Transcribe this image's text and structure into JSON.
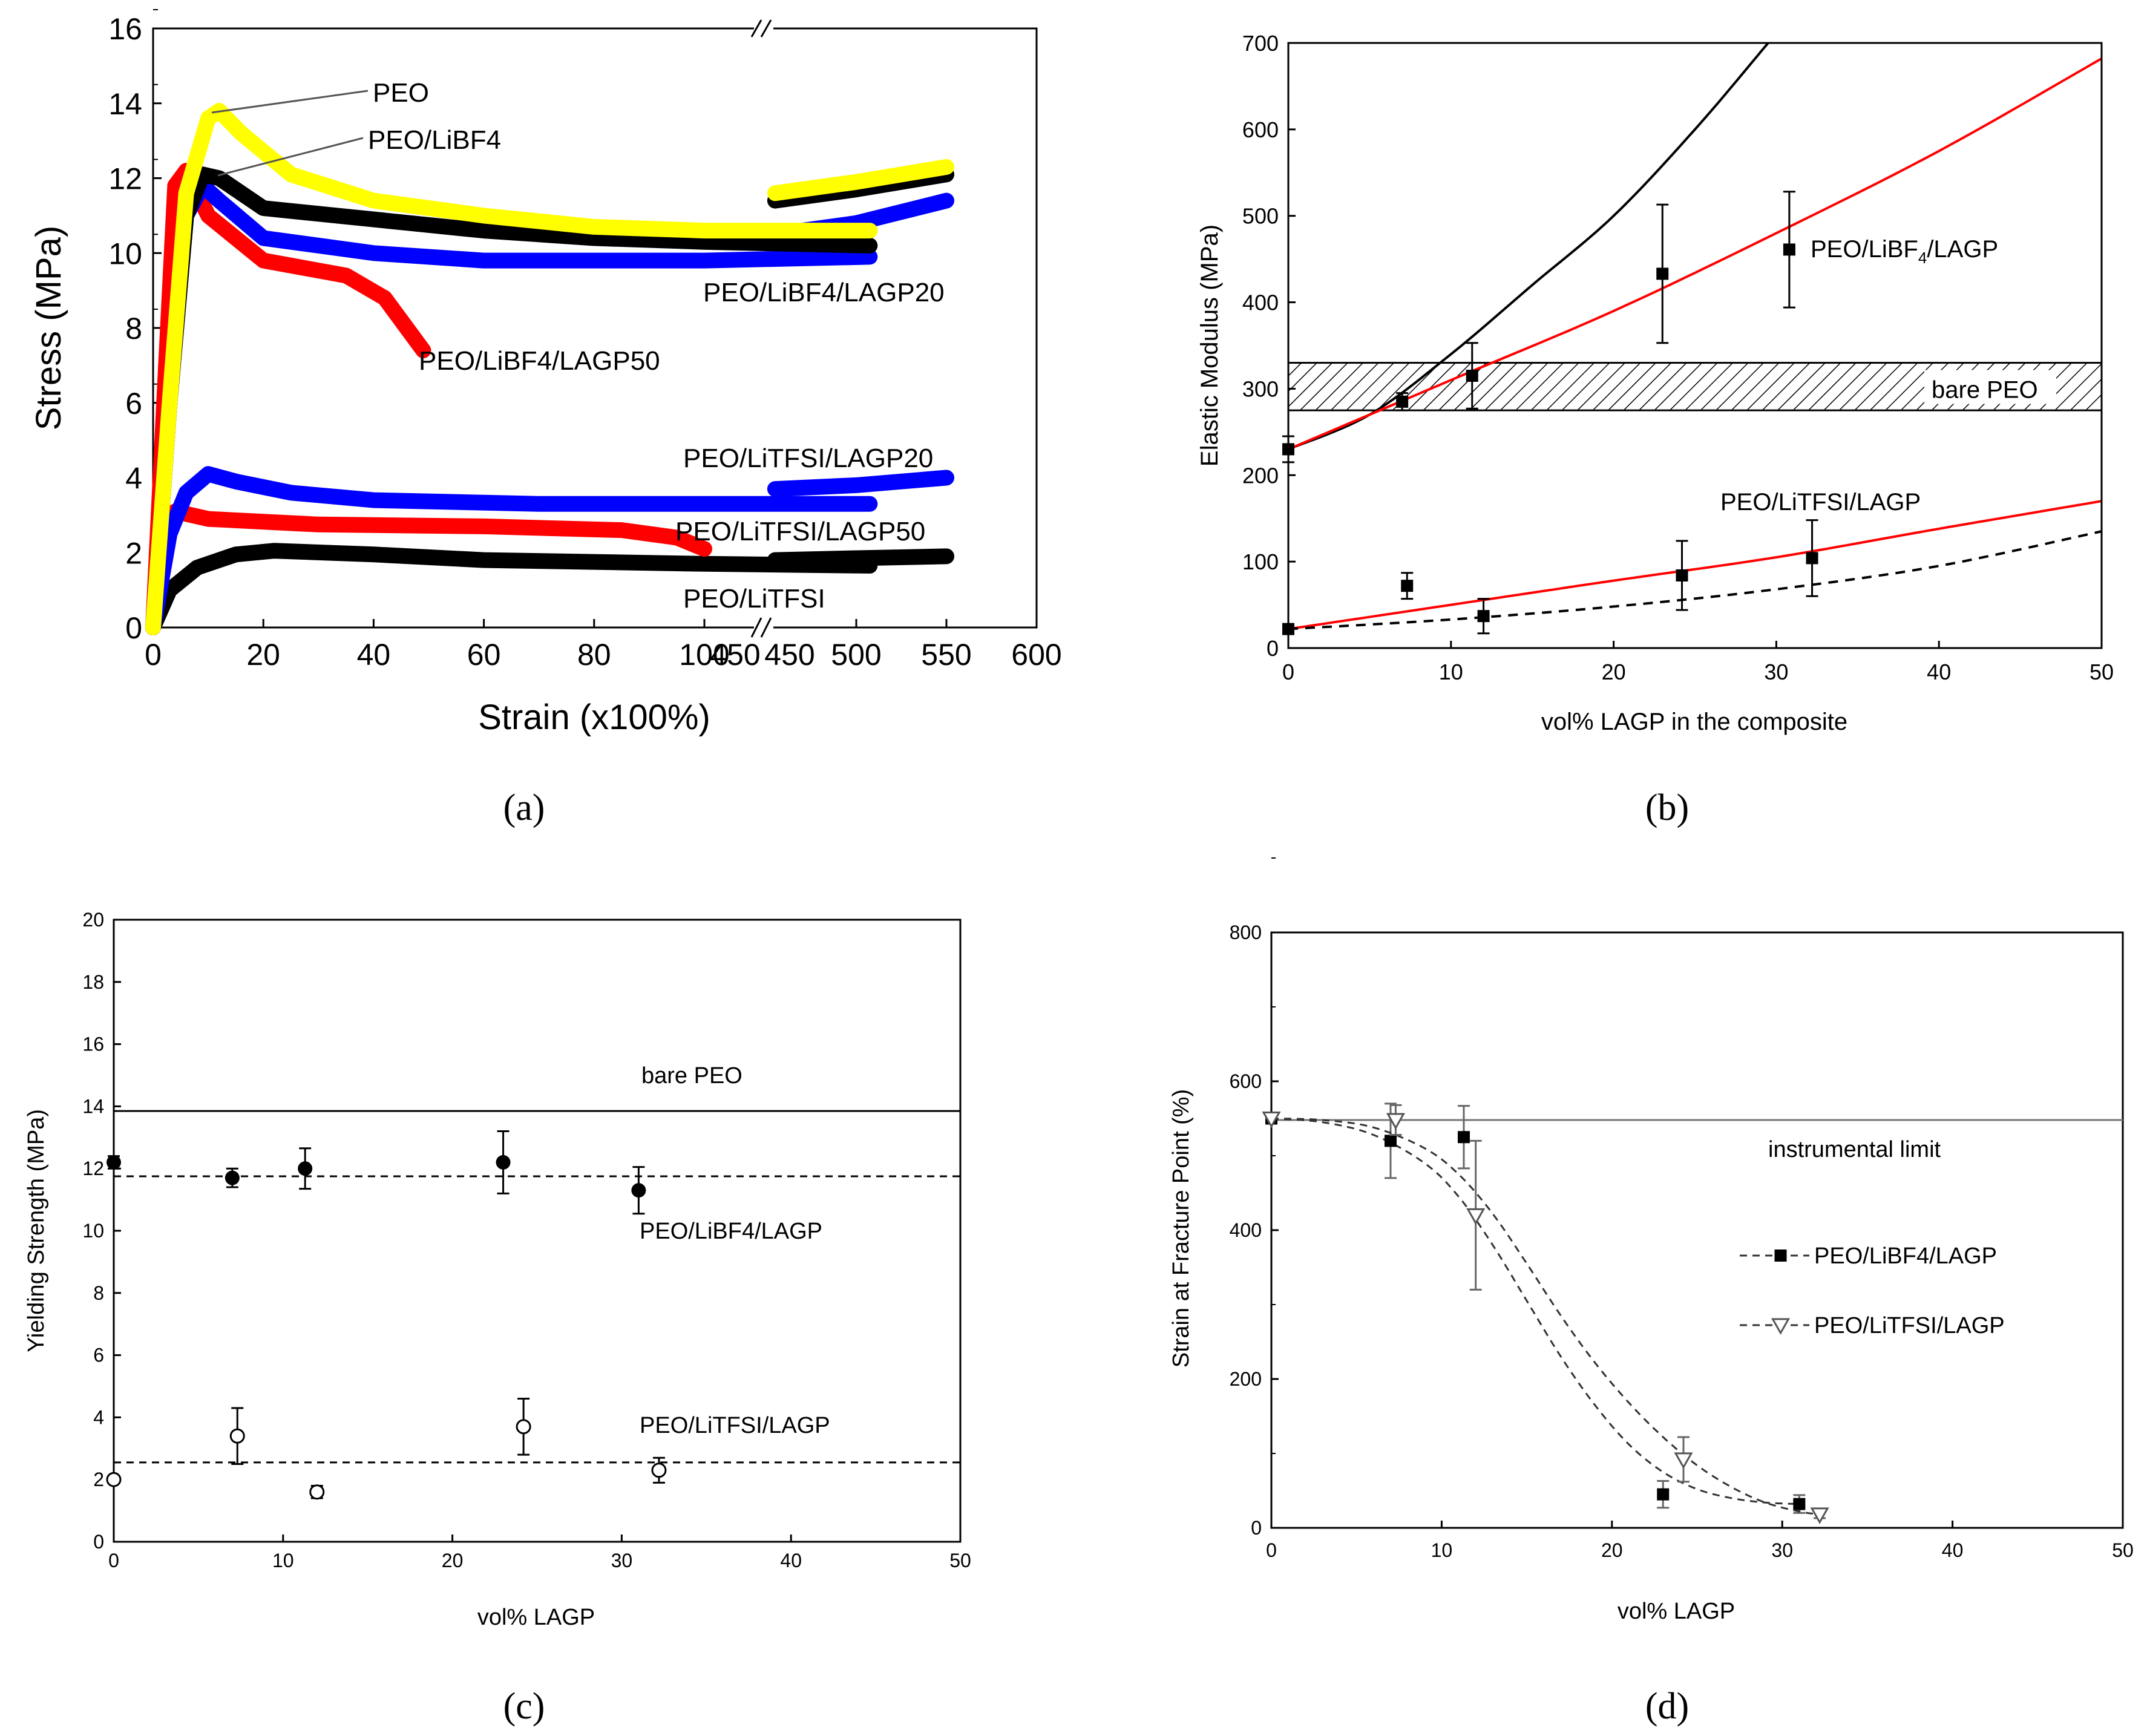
{
  "chart_data": [
    {
      "panel": "a",
      "type": "line",
      "title": "",
      "caption": "(a)",
      "xlabel": "Strain (x100%)",
      "ylabel": "Stress (MPa)",
      "ylim": [
        0,
        16
      ],
      "xlim_left": [
        0,
        140
      ],
      "xlim_right": [
        450,
        600
      ],
      "axis_break": "//",
      "xticks_left": [
        0,
        20,
        40,
        60,
        80,
        100
      ],
      "xtick_break_label": "450",
      "xticks_right": [
        500,
        550,
        600
      ],
      "yticks": [
        0,
        2,
        4,
        6,
        8,
        10,
        12,
        14,
        16
      ],
      "grid": false,
      "series": [
        {
          "name": "PEO",
          "color": "#ffff00",
          "points": [
            [
              0,
              0
            ],
            [
              3,
              6
            ],
            [
              6,
              11.6
            ],
            [
              10,
              13.6
            ],
            [
              12,
              13.8
            ],
            [
              16,
              13.2
            ],
            [
              25,
              12.1
            ],
            [
              40,
              11.4
            ],
            [
              60,
              11.0
            ],
            [
              80,
              10.7
            ],
            [
              100,
              10.6
            ],
            [
              130,
              10.6
            ]
          ],
          "points_right": [
            [
              455,
              11.6
            ],
            [
              500,
              11.9
            ],
            [
              550,
              12.3
            ]
          ]
        },
        {
          "name": "PEO/LiBF4",
          "color": "#000000",
          "points": [
            [
              0,
              0
            ],
            [
              3,
              6
            ],
            [
              6,
              11
            ],
            [
              9,
              12.1
            ],
            [
              12,
              12.0
            ],
            [
              20,
              11.2
            ],
            [
              40,
              10.9
            ],
            [
              60,
              10.6
            ],
            [
              80,
              10.4
            ],
            [
              100,
              10.3
            ],
            [
              130,
              10.2
            ]
          ],
          "points_right": [
            [
              455,
              11.4
            ],
            [
              500,
              11.7
            ],
            [
              550,
              12.1
            ]
          ]
        },
        {
          "name": "PEO/LiBF4/LAGP20",
          "color": "#0000ff",
          "points": [
            [
              0,
              0
            ],
            [
              3,
              6
            ],
            [
              6,
              11
            ],
            [
              9,
              11.8
            ],
            [
              12,
              11.4
            ],
            [
              20,
              10.4
            ],
            [
              40,
              10.0
            ],
            [
              60,
              9.8
            ],
            [
              80,
              9.8
            ],
            [
              100,
              9.8
            ],
            [
              130,
              9.9
            ]
          ],
          "points_right": [
            [
              455,
              10.5
            ],
            [
              500,
              10.8
            ],
            [
              550,
              11.4
            ]
          ]
        },
        {
          "name": "PEO/LiBF4/LAGP50",
          "color": "#ff0000",
          "points": [
            [
              0,
              0
            ],
            [
              2,
              6
            ],
            [
              4,
              11.8
            ],
            [
              6,
              12.2
            ],
            [
              10,
              11.0
            ],
            [
              20,
              9.8
            ],
            [
              35,
              9.4
            ],
            [
              42,
              8.8
            ],
            [
              46,
              8.0
            ],
            [
              49,
              7.4
            ]
          ],
          "points_right": []
        },
        {
          "name": "PEO/LiTFSI/LAGP20",
          "color": "#0000ff",
          "points": [
            [
              0,
              0
            ],
            [
              3,
              2.5
            ],
            [
              6,
              3.6
            ],
            [
              10,
              4.1
            ],
            [
              15,
              3.9
            ],
            [
              25,
              3.6
            ],
            [
              40,
              3.4
            ],
            [
              70,
              3.3
            ],
            [
              100,
              3.3
            ],
            [
              130,
              3.3
            ]
          ],
          "points_right": [
            [
              455,
              3.7
            ],
            [
              500,
              3.8
            ],
            [
              550,
              4.0
            ]
          ]
        },
        {
          "name": "PEO/LiTFSI/LAGP50",
          "color": "#ff0000",
          "points": [
            [
              0,
              0
            ],
            [
              2,
              2.5
            ],
            [
              4,
              3.1
            ],
            [
              10,
              2.9
            ],
            [
              30,
              2.75
            ],
            [
              60,
              2.7
            ],
            [
              85,
              2.6
            ],
            [
              95,
              2.4
            ],
            [
              100,
              2.1
            ]
          ],
          "points_right": []
        },
        {
          "name": "PEO/LiTFSI",
          "color": "#000000",
          "points": [
            [
              0,
              0
            ],
            [
              3,
              1.0
            ],
            [
              8,
              1.6
            ],
            [
              15,
              1.95
            ],
            [
              22,
              2.05
            ],
            [
              40,
              1.95
            ],
            [
              60,
              1.8
            ],
            [
              100,
              1.7
            ],
            [
              130,
              1.65
            ]
          ],
          "points_right": [
            [
              455,
              1.8
            ],
            [
              500,
              1.85
            ],
            [
              550,
              1.9
            ]
          ]
        }
      ],
      "labels": [
        "PEO",
        "PEO/LiBF4",
        "PEO/LiBF4/LAGP20",
        "PEO/LiBF4/LAGP50",
        "PEO/LiTFSI/LAGP20",
        "PEO/LiTFSI/LAGP50",
        "PEO/LiTFSI"
      ]
    },
    {
      "panel": "b",
      "type": "scatter",
      "caption": "(b)",
      "xlabel": "vol% LAGP in the composite",
      "ylabel": "Elastic Modulus (MPa)",
      "xlim": [
        0,
        50
      ],
      "ylim": [
        0,
        700
      ],
      "xticks": [
        0,
        10,
        20,
        30,
        40,
        50
      ],
      "yticks": [
        0,
        100,
        200,
        300,
        400,
        500,
        600,
        700
      ],
      "band": {
        "label": "bare PEO",
        "y0": 275,
        "y1": 330
      },
      "series": [
        {
          "name": "PEO/LiBF4/LAGP",
          "label_main": "PEO/LiBF",
          "label_sub": "4",
          "label_tail": "/LAGP",
          "x": [
            0,
            7,
            11.3,
            23,
            30.8
          ],
          "y": [
            230,
            285,
            315,
            433,
            461
          ],
          "err": [
            15,
            10,
            38,
            80,
            67
          ]
        },
        {
          "name": "PEO/LiTFSI/LAGP",
          "x": [
            0,
            7.3,
            12,
            24.2,
            32.2
          ],
          "y": [
            22,
            72,
            37,
            84,
            104
          ],
          "err": [
            5,
            15,
            20,
            40,
            44
          ]
        }
      ],
      "curves": [
        {
          "name": "black-upper",
          "color": "#000000",
          "style": "solid",
          "x": [
            0,
            5,
            10,
            15,
            20,
            25,
            29.5
          ],
          "y": [
            230,
            270,
            340,
            420,
            500,
            600,
            700
          ]
        },
        {
          "name": "red-upper",
          "color": "#ff0000",
          "style": "solid",
          "x": [
            0,
            10,
            20,
            30,
            40,
            50
          ],
          "y": [
            230,
            310,
            390,
            480,
            575,
            682
          ]
        },
        {
          "name": "red-lower",
          "color": "#ff0000",
          "style": "solid",
          "x": [
            0,
            10,
            20,
            30,
            40,
            50
          ],
          "y": [
            22,
            50,
            78,
            105,
            138,
            170
          ]
        },
        {
          "name": "black-dashed",
          "color": "#000000",
          "style": "dashed",
          "x": [
            0,
            10,
            20,
            30,
            40,
            50
          ],
          "y": [
            22,
            33,
            48,
            68,
            95,
            135
          ]
        }
      ]
    },
    {
      "panel": "c",
      "type": "scatter",
      "caption": "(c)",
      "xlabel": "vol% LAGP",
      "ylabel": "Yielding Strength (MPa)",
      "xlim": [
        0,
        50
      ],
      "ylim": [
        0,
        20
      ],
      "xticks": [
        0,
        10,
        20,
        30,
        40,
        50
      ],
      "yticks": [
        0,
        2,
        4,
        6,
        8,
        10,
        12,
        14,
        16,
        18,
        20
      ],
      "hlines": [
        {
          "label": "bare PEO",
          "y": 13.85,
          "style": "solid"
        },
        {
          "label": "PEO/LiBF4/LAGP",
          "y": 11.75,
          "style": "dashed"
        },
        {
          "label": "PEO/LiTFSI/LAGP",
          "y": 2.55,
          "style": "dashed"
        }
      ],
      "series": [
        {
          "name": "PEO/LiBF4/LAGP",
          "marker": "filled-circle",
          "x": [
            0,
            7,
            11.3,
            23,
            31
          ],
          "y": [
            12.2,
            11.7,
            12.0,
            12.2,
            11.3
          ],
          "err": [
            0.2,
            0.3,
            0.65,
            1.0,
            0.75
          ]
        },
        {
          "name": "PEO/LiTFSI/LAGP",
          "marker": "open-circle",
          "x": [
            0,
            7.3,
            12,
            24.2,
            32.2
          ],
          "y": [
            2.0,
            3.4,
            1.6,
            3.7,
            2.3
          ],
          "err": [
            0.1,
            0.9,
            0.2,
            0.9,
            0.4
          ]
        }
      ]
    },
    {
      "panel": "d",
      "type": "scatter",
      "caption": "(d)",
      "xlabel": "vol% LAGP",
      "ylabel": "Strain at Fracture Point (%)",
      "xlim": [
        0,
        50
      ],
      "ylim": [
        0,
        800
      ],
      "xticks": [
        0,
        10,
        20,
        30,
        40,
        50
      ],
      "yticks": [
        0,
        200,
        400,
        600,
        800
      ],
      "hline": {
        "label": "instrumental limit",
        "y": 548
      },
      "legend": [
        "PEO/LiBF4/LAGP",
        "PEO/LiTFSI/LAGP"
      ],
      "series": [
        {
          "name": "PEO/LiBF4/LAGP",
          "marker": "filled-square",
          "x": [
            0,
            7,
            11.3,
            23,
            31
          ],
          "y": [
            550,
            520,
            525,
            45,
            32
          ],
          "err": [
            0,
            50,
            42,
            18,
            12
          ],
          "fit_x": [
            0,
            3,
            6,
            9,
            11,
            13,
            15,
            17,
            19,
            21,
            23,
            25,
            27,
            29,
            31
          ],
          "fit_y": [
            550,
            545,
            528,
            490,
            445,
            380,
            305,
            230,
            165,
            112,
            75,
            52,
            40,
            34,
            32
          ]
        },
        {
          "name": "PEO/LiTFSI/LAGP",
          "marker": "open-triangle-down",
          "x": [
            0,
            7.3,
            12,
            24.2,
            32.2
          ],
          "y": [
            550,
            548,
            420,
            92,
            18
          ],
          "err": [
            0,
            20,
            100,
            30,
            5
          ],
          "fit_x": [
            0,
            3,
            6,
            9,
            11,
            13,
            15,
            17,
            19,
            21,
            23,
            25,
            27,
            29,
            31,
            32.2
          ],
          "fit_y": [
            550,
            548,
            538,
            510,
            475,
            422,
            355,
            285,
            222,
            168,
            122,
            84,
            55,
            34,
            22,
            18
          ]
        }
      ]
    }
  ]
}
